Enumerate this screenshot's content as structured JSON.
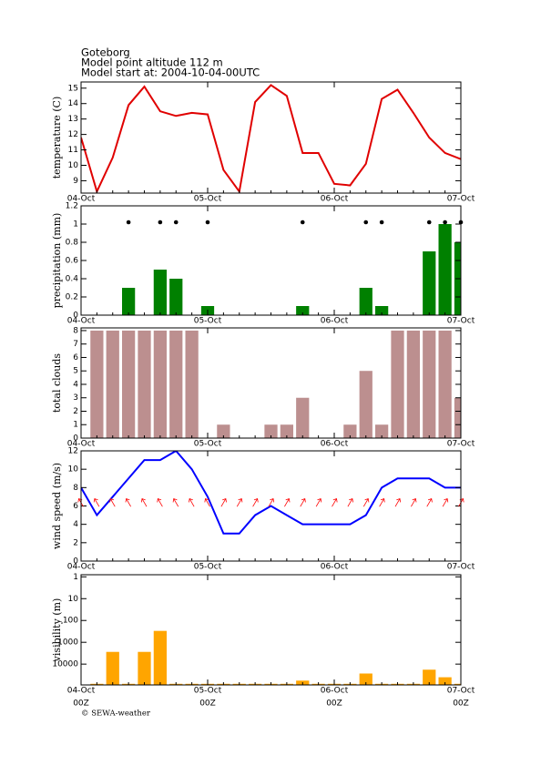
{
  "header": {
    "location": "Goteborg",
    "altitude": "Model point altitude  112 m",
    "start": "Model start at: 2004-10-04-00UTC"
  },
  "footer": "© SEWA-weather",
  "chart_data": [
    {
      "type": "line",
      "ylabel": "temperature (C)",
      "x": [
        0,
        3,
        6,
        9,
        12,
        15,
        18,
        21,
        24,
        27,
        30,
        33,
        36,
        39,
        42,
        45,
        48,
        51,
        54,
        57,
        60,
        63,
        66,
        69,
        72
      ],
      "xlim": [
        0,
        72
      ],
      "xticks": [
        {
          "value": 0,
          "label": "04-Oct"
        },
        {
          "value": 24,
          "label": "05-Oct"
        },
        {
          "value": 48,
          "label": "06-Oct"
        },
        {
          "value": 72,
          "label": "07-Oct"
        }
      ],
      "ylim": [
        8.2,
        15.4
      ],
      "yticks": [
        9,
        10,
        11,
        12,
        13,
        14,
        15
      ],
      "series": [
        {
          "color": "#e00000",
          "values": [
            11.8,
            8.3,
            10.5,
            13.9,
            15.1,
            13.5,
            13.2,
            13.4,
            13.3,
            9.7,
            8.3,
            14.1,
            15.2,
            14.5,
            10.8,
            10.8,
            8.8,
            8.7,
            10.1,
            14.3,
            14.9,
            13.4,
            11.8,
            10.8,
            10.4
          ]
        }
      ]
    },
    {
      "type": "bar",
      "ylabel": "precipitation (mm)",
      "markers": true,
      "x": [
        0,
        3,
        6,
        9,
        12,
        15,
        18,
        21,
        24,
        27,
        30,
        33,
        36,
        39,
        42,
        45,
        48,
        51,
        54,
        57,
        60,
        63,
        66,
        69,
        72
      ],
      "xlim": [
        0,
        72
      ],
      "xticks": [
        {
          "value": 0,
          "label": "04-Oct"
        },
        {
          "value": 24,
          "label": "05-Oct"
        },
        {
          "value": 48,
          "label": "06-Oct"
        },
        {
          "value": 72,
          "label": "07-Oct"
        }
      ],
      "ylim": [
        0,
        1.2
      ],
      "yticks": [
        0,
        0.2,
        0.4,
        0.6,
        0.8,
        1,
        1.2
      ],
      "series": [
        {
          "color": "#008000",
          "values": [
            0,
            0,
            0,
            0.3,
            0,
            0.5,
            0.4,
            0,
            0.1,
            0,
            0,
            0,
            0,
            0,
            0.1,
            0,
            0,
            0,
            0.3,
            0.1,
            0,
            0,
            0.7,
            1.0,
            0.8
          ]
        }
      ]
    },
    {
      "type": "bar",
      "ylabel": "total clouds",
      "x": [
        0,
        3,
        6,
        9,
        12,
        15,
        18,
        21,
        24,
        27,
        30,
        33,
        36,
        39,
        42,
        45,
        48,
        51,
        54,
        57,
        60,
        63,
        66,
        69,
        72
      ],
      "xlim": [
        0,
        72
      ],
      "xticks": [
        {
          "value": 0,
          "label": "04-Oct"
        },
        {
          "value": 24,
          "label": "05-Oct"
        },
        {
          "value": 48,
          "label": "06-Oct"
        },
        {
          "value": 72,
          "label": "07-Oct"
        }
      ],
      "ylim": [
        0,
        8.2
      ],
      "yticks": [
        0,
        1,
        2,
        3,
        4,
        5,
        6,
        7,
        8
      ],
      "series": [
        {
          "color": "#bc8f8f",
          "values": [
            0,
            8,
            8,
            8,
            8,
            8,
            8,
            8,
            0,
            1,
            0,
            0,
            1,
            1,
            3,
            0,
            0,
            1,
            5,
            1,
            8,
            8,
            8,
            8,
            3
          ]
        }
      ]
    },
    {
      "type": "line",
      "ylabel": "wind speed (m/s)",
      "x": [
        0,
        3,
        6,
        9,
        12,
        15,
        18,
        21,
        24,
        27,
        30,
        33,
        36,
        39,
        42,
        45,
        48,
        51,
        54,
        57,
        60,
        63,
        66,
        69,
        72
      ],
      "xlim": [
        0,
        72
      ],
      "xticks": [
        {
          "value": 0,
          "label": "04-Oct"
        },
        {
          "value": 24,
          "label": "05-Oct"
        },
        {
          "value": 48,
          "label": "06-Oct"
        },
        {
          "value": 72,
          "label": "07-Oct"
        }
      ],
      "ylim": [
        0,
        12
      ],
      "yticks": [
        0,
        2,
        4,
        6,
        8,
        10,
        12
      ],
      "series": [
        {
          "color": "#0000ff",
          "values": [
            8,
            5,
            7,
            9,
            11,
            11,
            12,
            10,
            7,
            3,
            3,
            5,
            6,
            5,
            4,
            4,
            4,
            4,
            5,
            8,
            9,
            9,
            9,
            8,
            8
          ]
        }
      ],
      "arrows": {
        "color": "#ff0000",
        "angles": [
          -30,
          -30,
          -30,
          -30,
          -30,
          -30,
          -30,
          -30,
          -30,
          30,
          30,
          30,
          30,
          30,
          30,
          30,
          30,
          30,
          30,
          30,
          30,
          30,
          30,
          30,
          30
        ]
      }
    },
    {
      "type": "bar",
      "ylabel": "visibility (m)",
      "log": true,
      "inverted": true,
      "sub_labels": [
        "00Z",
        "00Z",
        "00Z",
        "00Z"
      ],
      "x": [
        0,
        3,
        6,
        9,
        12,
        15,
        18,
        21,
        24,
        27,
        30,
        33,
        36,
        39,
        42,
        45,
        48,
        51,
        54,
        57,
        60,
        63,
        66,
        69,
        72
      ],
      "xlim": [
        0,
        72
      ],
      "xticks": [
        {
          "value": 0,
          "label": "04-Oct"
        },
        {
          "value": 24,
          "label": "05-Oct"
        },
        {
          "value": 48,
          "label": "06-Oct"
        },
        {
          "value": 72,
          "label": "07-Oct"
        }
      ],
      "ylim": [
        0.8,
        90000
      ],
      "yticks": [
        1,
        10,
        100,
        1000,
        10000
      ],
      "series": [
        {
          "color": "#ffa500",
          "values": [
            null,
            80000,
            2750,
            80000,
            2750,
            300,
            80000,
            80000,
            80000,
            80000,
            80000,
            80000,
            80000,
            80000,
            57000,
            80000,
            80000,
            80000,
            27000,
            80000,
            80000,
            80000,
            18000,
            40000,
            80000
          ]
        }
      ]
    }
  ]
}
